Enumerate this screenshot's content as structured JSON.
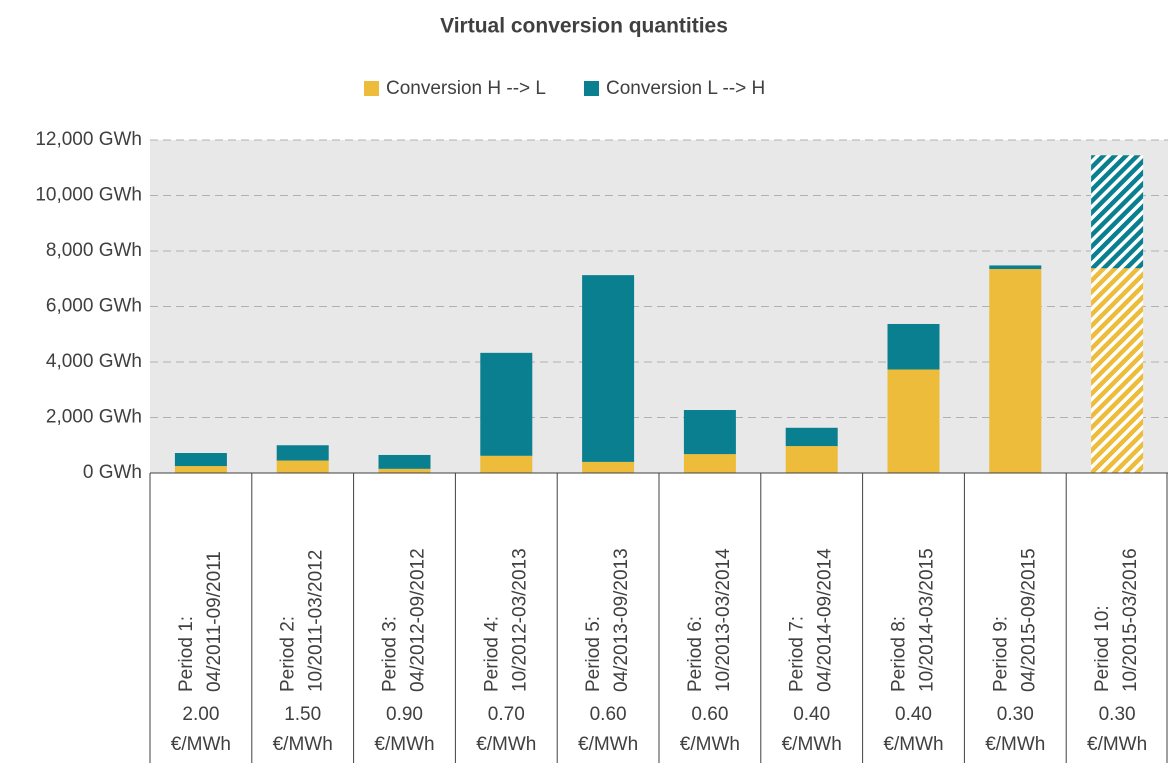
{
  "chart_data": {
    "type": "stacked_bar",
    "title": "Virtual conversion quantities",
    "categories": [
      [
        "Period 1:",
        "04/2011-09/2011"
      ],
      [
        "Period 2:",
        "10/2011-03/2012"
      ],
      [
        "Period 3:",
        "04/2012-09/2012"
      ],
      [
        "Period 4:",
        "10/2012-03/2013"
      ],
      [
        "Period 5:",
        "04/2013-09/2013"
      ],
      [
        "Period 6:",
        "10/2013-03/2014"
      ],
      [
        "Period 7:",
        "04/2014-09/2014"
      ],
      [
        "Period 8:",
        "10/2014-03/2015"
      ],
      [
        "Period 9:",
        "04/2015-09/2015"
      ],
      [
        "Period 10:",
        "10/2015-03/2016"
      ]
    ],
    "prices": [
      "2.00",
      "1.50",
      "0.90",
      "0.70",
      "0.60",
      "0.60",
      "0.40",
      "0.40",
      "0.30",
      "0.30"
    ],
    "price_unit": "€/MWh",
    "series": [
      {
        "name": "Conversion H --> L",
        "color": "#ecbc3a",
        "values": [
          250,
          450,
          150,
          620,
          400,
          680,
          970,
          3730,
          7350,
          7380
        ]
      },
      {
        "name": "Conversion L --> H",
        "color": "#0a7f8f",
        "values": [
          470,
          550,
          500,
          3710,
          6730,
          1590,
          660,
          1640,
          130,
          4070
        ]
      }
    ],
    "hatched": [
      false,
      false,
      false,
      false,
      false,
      false,
      false,
      false,
      false,
      true
    ],
    "ylim": [
      0,
      12000
    ],
    "yticks": [
      {
        "value": 0,
        "label": "0 GWh"
      },
      {
        "value": 2000,
        "label": "2,000 GWh"
      },
      {
        "value": 4000,
        "label": "4,000 GWh"
      },
      {
        "value": 6000,
        "label": "6,000 GWh"
      },
      {
        "value": 8000,
        "label": "8,000 GWh"
      },
      {
        "value": 10000,
        "label": "10,000 GWh"
      },
      {
        "value": 12000,
        "label": "12,000 GWh"
      }
    ],
    "grid": true,
    "legend": "top"
  }
}
